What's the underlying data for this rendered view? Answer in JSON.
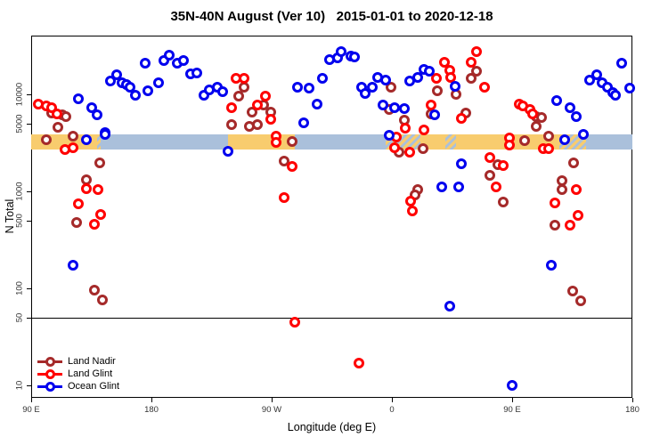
{
  "chart_data": {
    "type": "scatter",
    "title": "35N-40N August (Ver 10)   2015-01-01 to 2020-12-18",
    "xlabel": "Longitude (deg E)",
    "ylabel": "N Total",
    "x_axis": {
      "units": "degrees east, wrapping 90E to 180",
      "range": [
        90,
        540
      ],
      "ticks": [
        {
          "lon": 90,
          "label": "90 E"
        },
        {
          "lon": 180,
          "label": "180"
        },
        {
          "lon": 270,
          "label": "90 W"
        },
        {
          "lon": 360,
          "label": "0"
        },
        {
          "lon": 450,
          "label": "90 E"
        },
        {
          "lon": 540,
          "label": "180"
        }
      ]
    },
    "y_axis": {
      "scale": "log",
      "range": [
        7.5,
        40000
      ],
      "ticks": [
        {
          "value": 10,
          "label": "10"
        },
        {
          "value": 50,
          "label": "50"
        },
        {
          "value": 100,
          "label": "100"
        },
        {
          "value": 500,
          "label": "500"
        },
        {
          "value": 1000,
          "label": "1000"
        },
        {
          "value": 5000,
          "label": "5000"
        },
        {
          "value": 10000,
          "label": "10000"
        }
      ]
    },
    "reference_line_n": 50,
    "surface_band": {
      "n_top": 3870,
      "n_bottom": 2700,
      "land_color": "#F8CC6E",
      "ocean_color": "#AAC0DB",
      "segments": [
        {
          "from": 90,
          "to": 139,
          "surface": "land"
        },
        {
          "from": 139,
          "to": 142,
          "surface": "mixed"
        },
        {
          "from": 142,
          "to": 237,
          "surface": "ocean"
        },
        {
          "from": 237,
          "to": 287,
          "surface": "land"
        },
        {
          "from": 287,
          "to": 355,
          "surface": "ocean"
        },
        {
          "from": 355,
          "to": 381,
          "surface": "mixed"
        },
        {
          "from": 381,
          "to": 400,
          "surface": "land"
        },
        {
          "from": 400,
          "to": 408,
          "surface": "mixed"
        },
        {
          "from": 408,
          "to": 485,
          "surface": "land"
        },
        {
          "from": 485,
          "to": 505,
          "surface": "mixed"
        },
        {
          "from": 505,
          "to": 540,
          "surface": "ocean"
        }
      ]
    },
    "series": [
      {
        "name": "Land Nadir",
        "color": "#A52A2A",
        "points": [
          [
            105,
            6400
          ],
          [
            113,
            6100
          ],
          [
            116,
            5900
          ],
          [
            110,
            4570
          ],
          [
            101,
            3400
          ],
          [
            121,
            3700
          ],
          [
            141,
            1970
          ],
          [
            131,
            1320
          ],
          [
            124,
            480
          ],
          [
            137,
            96
          ],
          [
            143,
            76
          ],
          [
            240,
            4880
          ],
          [
            245,
            9600
          ],
          [
            249,
            11900
          ],
          [
            253,
            4680
          ],
          [
            255,
            6570
          ],
          [
            259,
            4880
          ],
          [
            264,
            7750
          ],
          [
            269,
            6570
          ],
          [
            285,
            3270
          ],
          [
            279,
            2060
          ],
          [
            359,
            11900
          ],
          [
            358,
            6990
          ],
          [
            369,
            5420
          ],
          [
            365,
            2540
          ],
          [
            383,
            2750
          ],
          [
            379,
            1050
          ],
          [
            377,
            920
          ],
          [
            389,
            6280
          ],
          [
            394,
            10900
          ],
          [
            408,
            10000
          ],
          [
            415,
            6430
          ],
          [
            419,
            14600
          ],
          [
            423,
            17300
          ],
          [
            433,
            1470
          ],
          [
            439,
            1890
          ],
          [
            443,
            775
          ],
          [
            459,
            3340
          ],
          [
            468,
            5920
          ],
          [
            472,
            5800
          ],
          [
            468,
            4640
          ],
          [
            477,
            3700
          ],
          [
            482,
            448
          ],
          [
            487,
            1290
          ],
          [
            487,
            1040
          ],
          [
            496,
            1960
          ],
          [
            495,
            94
          ],
          [
            501,
            74
          ]
        ]
      },
      {
        "name": "Land Glint",
        "color": "#FF0000",
        "points": [
          [
            95,
            7900
          ],
          [
            101,
            7600
          ],
          [
            105,
            7300
          ],
          [
            109,
            6300
          ],
          [
            115,
            2700
          ],
          [
            121,
            2820
          ],
          [
            131,
            1070
          ],
          [
            140,
            1050
          ],
          [
            125,
            745
          ],
          [
            142,
            580
          ],
          [
            137,
            458
          ],
          [
            240,
            7300
          ],
          [
            243,
            14600
          ],
          [
            249,
            14600
          ],
          [
            259,
            7750
          ],
          [
            265,
            9600
          ],
          [
            269,
            5520
          ],
          [
            273,
            3700
          ],
          [
            273,
            3210
          ],
          [
            285,
            1810
          ],
          [
            279,
            860
          ],
          [
            287,
            45
          ],
          [
            335,
            17
          ],
          [
            363,
            3630
          ],
          [
            362,
            2820
          ],
          [
            373,
            2540
          ],
          [
            370,
            4480
          ],
          [
            384,
            4300
          ],
          [
            374,
            790
          ],
          [
            375,
            630
          ],
          [
            389,
            7750
          ],
          [
            393,
            14600
          ],
          [
            399,
            21400
          ],
          [
            403,
            17700
          ],
          [
            404,
            15000
          ],
          [
            412,
            5700
          ],
          [
            419,
            21400
          ],
          [
            423,
            27600
          ],
          [
            429,
            11900
          ],
          [
            433,
            2250
          ],
          [
            443,
            1850
          ],
          [
            438,
            1110
          ],
          [
            448,
            3560
          ],
          [
            448,
            3000
          ],
          [
            455,
            7900
          ],
          [
            458,
            7600
          ],
          [
            463,
            7000
          ],
          [
            465,
            6300
          ],
          [
            473,
            2770
          ],
          [
            477,
            2770
          ],
          [
            482,
            760
          ],
          [
            493,
            448
          ],
          [
            498,
            1040
          ],
          [
            499,
            565
          ]
        ]
      },
      {
        "name": "Ocean Glint",
        "color": "#0000EE",
        "points": [
          [
            125,
            9000
          ],
          [
            135,
            7300
          ],
          [
            139,
            6170
          ],
          [
            145,
            4040
          ],
          [
            149,
            13700
          ],
          [
            154,
            15900
          ],
          [
            158,
            13100
          ],
          [
            161,
            12600
          ],
          [
            164,
            11900
          ],
          [
            168,
            9850
          ],
          [
            175,
            21000
          ],
          [
            177,
            10900
          ],
          [
            185,
            13100
          ],
          [
            189,
            22400
          ],
          [
            193,
            25500
          ],
          [
            199,
            21000
          ],
          [
            204,
            22400
          ],
          [
            209,
            16300
          ],
          [
            214,
            16700
          ],
          [
            219,
            9850
          ],
          [
            223,
            11200
          ],
          [
            229,
            11900
          ],
          [
            233,
            10700
          ],
          [
            131,
            3400
          ],
          [
            145,
            3870
          ],
          [
            121,
            173
          ],
          [
            237,
            2590
          ],
          [
            289,
            11900
          ],
          [
            294,
            5100
          ],
          [
            298,
            11600
          ],
          [
            304,
            7900
          ],
          [
            308,
            14600
          ],
          [
            313,
            22800
          ],
          [
            319,
            23800
          ],
          [
            322,
            27600
          ],
          [
            329,
            24900
          ],
          [
            332,
            24400
          ],
          [
            337,
            11900
          ],
          [
            340,
            10200
          ],
          [
            345,
            11900
          ],
          [
            349,
            15000
          ],
          [
            355,
            14100
          ],
          [
            353,
            7750
          ],
          [
            358,
            3790
          ],
          [
            362,
            7300
          ],
          [
            369,
            7150
          ],
          [
            373,
            13700
          ],
          [
            379,
            15000
          ],
          [
            384,
            18100
          ],
          [
            388,
            17300
          ],
          [
            392,
            6170
          ],
          [
            397,
            1110
          ],
          [
            403,
            66
          ],
          [
            407,
            12200
          ],
          [
            410,
            1110
          ],
          [
            412,
            1920
          ],
          [
            450,
            10
          ],
          [
            479,
            174
          ],
          [
            483,
            8650
          ],
          [
            489,
            3420
          ],
          [
            493,
            7300
          ],
          [
            498,
            5920
          ],
          [
            503,
            3870
          ],
          [
            508,
            13900
          ],
          [
            513,
            15900
          ],
          [
            517,
            13100
          ],
          [
            521,
            11900
          ],
          [
            525,
            10500
          ],
          [
            527,
            9700
          ],
          [
            532,
            21000
          ],
          [
            538,
            11600
          ]
        ]
      }
    ]
  }
}
